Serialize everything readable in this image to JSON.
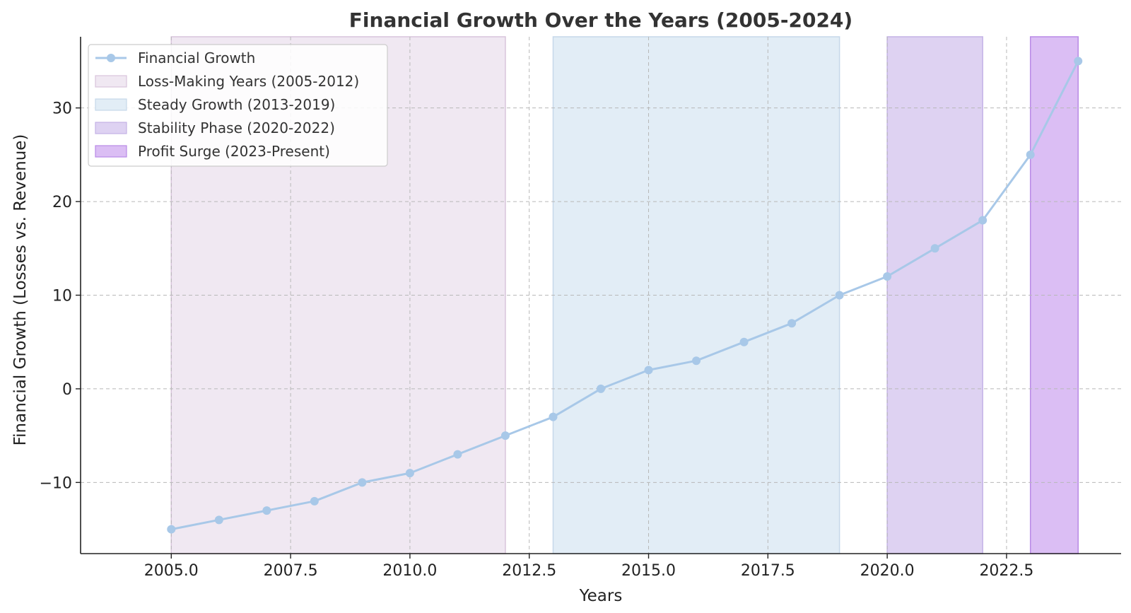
{
  "chart_data": {
    "type": "line",
    "title": "Financial Growth Over the Years (2005-2024)",
    "xlabel": "Years",
    "ylabel": "Financial Growth (Losses vs. Revenue)",
    "xlim": [
      2003.1,
      2024.9
    ],
    "ylim": [
      -17.6,
      37.6
    ],
    "xticks": [
      2005.0,
      2007.5,
      2010.0,
      2012.5,
      2015.0,
      2017.5,
      2020.0,
      2022.5
    ],
    "xtick_labels": [
      "2005.0",
      "2007.5",
      "2010.0",
      "2012.5",
      "2015.0",
      "2017.5",
      "2020.0",
      "2022.5"
    ],
    "yticks": [
      -10,
      0,
      10,
      20,
      30
    ],
    "ytick_labels": [
      "−10",
      "0",
      "10",
      "20",
      "30"
    ],
    "grid": true,
    "legend_position": "top-left",
    "series": [
      {
        "name": "Financial Growth",
        "color": "#a8c8e8",
        "x": [
          2005,
          2006,
          2007,
          2008,
          2009,
          2010,
          2011,
          2012,
          2013,
          2014,
          2015,
          2016,
          2017,
          2018,
          2019,
          2020,
          2021,
          2022,
          2023,
          2024
        ],
        "y": [
          -15,
          -14,
          -13,
          -12,
          -10,
          -9,
          -7,
          -5,
          -3,
          0,
          2,
          3,
          5,
          7,
          10,
          12,
          15,
          18,
          25,
          35
        ]
      }
    ],
    "spans": [
      {
        "name": "Loss-Making Years (2005-2012)",
        "start": 2005,
        "end": 2012,
        "fill": "#f0e8f2",
        "edge": "#d8c4dc"
      },
      {
        "name": "Steady Growth (2013-2019)",
        "start": 2013,
        "end": 2019,
        "fill": "#e2edf6",
        "edge": "#c6d8ea"
      },
      {
        "name": "Stability Phase (2020-2022)",
        "start": 2020,
        "end": 2022,
        "fill": "#ded2f2",
        "edge": "#c4b2e6"
      },
      {
        "name": "Profit Surge (2023-Present)",
        "start": 2023,
        "end": 2024,
        "fill": "#dbbef4",
        "edge": "#b98ae6"
      }
    ]
  }
}
